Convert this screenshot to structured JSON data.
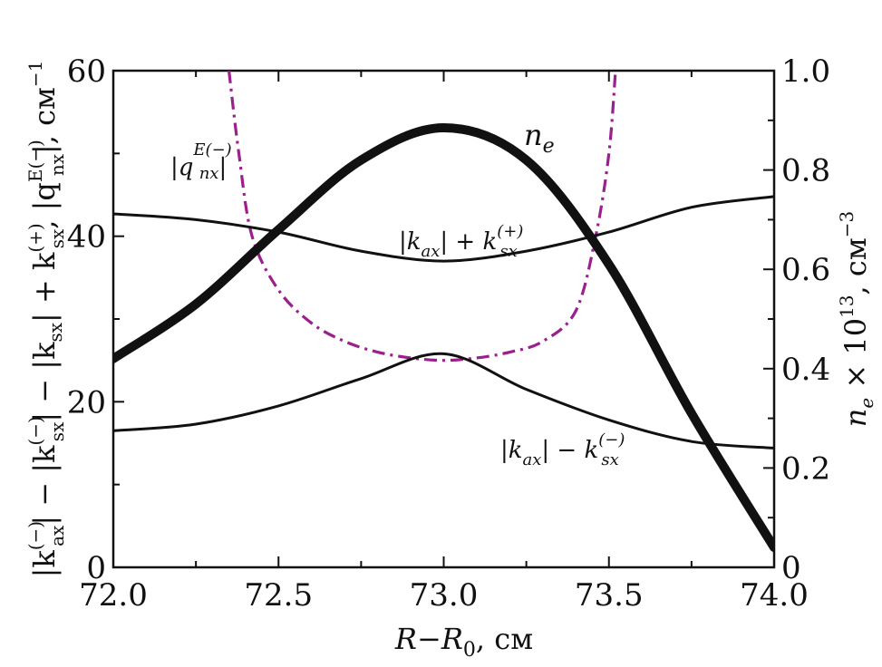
{
  "chart_data": {
    "type": "line",
    "title": "",
    "xlabel": "R−R0, см",
    "ylabel_left": "|k(−)ax| − |k(−)sx| − |ksx| + k(+)sx, |q E(−) nx|, см−1",
    "ylabel_right": "ne × 10^13, см−3",
    "xlim": [
      72.0,
      74.0
    ],
    "ylim_left": [
      0,
      60
    ],
    "ylim_right": [
      0,
      1.0
    ],
    "x_ticks": [
      "72.0",
      "72.5",
      "73.0",
      "73.5",
      "74.0"
    ],
    "y_ticks_left": [
      "0",
      "20",
      "40",
      "60"
    ],
    "y_ticks_right": [
      "0",
      "0.2",
      "0.4",
      "0.6",
      "0.8",
      "1.0"
    ],
    "grid": false,
    "series": [
      {
        "name": "ne",
        "axis": "right",
        "style": "thick",
        "x": [
          72.0,
          72.25,
          72.5,
          72.75,
          73.0,
          73.25,
          73.5,
          73.75,
          74.0
        ],
        "y": [
          0.42,
          0.53,
          0.68,
          0.82,
          0.885,
          0.82,
          0.61,
          0.31,
          0.04
        ]
      },
      {
        "name": "|kax| + k(+)sx",
        "axis": "left",
        "style": "solid",
        "x": [
          72.0,
          72.25,
          72.5,
          72.75,
          73.0,
          73.25,
          73.5,
          73.75,
          74.0
        ],
        "y": [
          42.7,
          42.0,
          40.5,
          38.2,
          37.0,
          38.2,
          40.5,
          43.5,
          44.8
        ]
      },
      {
        "name": "|kax| − k(−)sx",
        "axis": "left",
        "style": "solid",
        "x": [
          72.0,
          72.25,
          72.5,
          72.75,
          73.0,
          73.25,
          73.5,
          73.75,
          74.0
        ],
        "y": [
          16.5,
          17.3,
          19.5,
          22.8,
          25.8,
          21.5,
          17.8,
          15.2,
          14.4
        ]
      },
      {
        "name": "|q E(−) nx|",
        "axis": "left",
        "style": "dashdot",
        "color": "#9b1f8c",
        "x": [
          72.35,
          72.38,
          72.42,
          72.5,
          72.6,
          72.7,
          72.8,
          72.9,
          73.0,
          73.1,
          73.2,
          73.3,
          73.4,
          73.46,
          73.5,
          73.52
        ],
        "y": [
          60,
          50,
          40,
          33.5,
          29.5,
          27.3,
          26.0,
          25.3,
          25.0,
          25.3,
          26.0,
          27.3,
          31.0,
          40,
          50,
          60
        ]
      }
    ],
    "annotations": [
      {
        "text": "ne",
        "near_series": "ne"
      },
      {
        "text": "|kax| + k(+)sx",
        "near_series": "|kax| + k(+)sx"
      },
      {
        "text": "|kax| − k(−)sx",
        "near_series": "|kax| − k(−)sx"
      },
      {
        "text": "|q E(−) nx|",
        "near_series": "|q E(−) nx|"
      }
    ]
  }
}
